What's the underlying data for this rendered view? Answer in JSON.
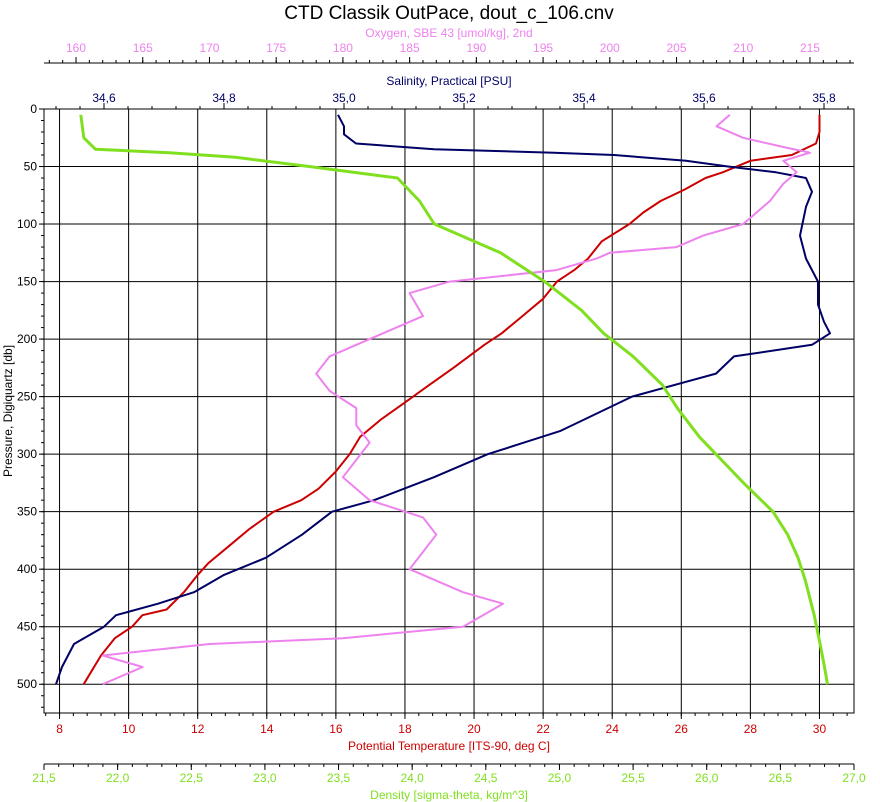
{
  "chart_data": {
    "type": "line",
    "title": "CTD Classik OutPace, dout_c_106.cnv",
    "y_axis": {
      "label": "Pressure, Digiquartz [db]",
      "range": [
        0,
        525
      ],
      "ticks": [
        0,
        50,
        100,
        150,
        200,
        250,
        300,
        350,
        400,
        450,
        500
      ],
      "tick_labels": [
        "0",
        "50",
        "100",
        "150",
        "200",
        "250",
        "300",
        "350",
        "400",
        "450",
        "500"
      ],
      "inverted": true
    },
    "x_axes": [
      {
        "id": "oxygen",
        "label": "Oxygen, SBE 43 [umol/kg], 2nd",
        "position": "top-outer",
        "color": "#ee82ee",
        "range": [
          157.6,
          218.3
        ],
        "ticks": [
          160,
          165,
          170,
          175,
          180,
          185,
          190,
          195,
          200,
          205,
          210,
          215
        ],
        "tick_labels": [
          "160",
          "165",
          "170",
          "175",
          "180",
          "185",
          "190",
          "195",
          "200",
          "205",
          "210",
          "215"
        ]
      },
      {
        "id": "salinity",
        "label": "Salinity, Practical [PSU]",
        "position": "top-inner",
        "color": "#000066",
        "range": [
          34.5,
          35.85
        ],
        "ticks": [
          34.6,
          34.8,
          35.0,
          35.2,
          35.4,
          35.6,
          35.8
        ],
        "tick_labels": [
          "34,6",
          "34,8",
          "35,0",
          "35,2",
          "35,4",
          "35,6",
          "35,8"
        ]
      },
      {
        "id": "temperature",
        "label": "Potential Temperature [ITS-90, deg C]",
        "position": "bottom-inner",
        "color": "#cc0000",
        "range": [
          7.55,
          31.0
        ],
        "ticks": [
          8,
          10,
          12,
          14,
          16,
          18,
          20,
          22,
          24,
          26,
          28,
          30
        ],
        "tick_labels": [
          "8",
          "10",
          "12",
          "14",
          "16",
          "18",
          "20",
          "22",
          "24",
          "26",
          "28",
          "30"
        ]
      },
      {
        "id": "density",
        "label": "Density [sigma-theta, kg/m^3]",
        "position": "bottom-outer",
        "color": "#80e020",
        "range": [
          21.5,
          27.0
        ],
        "ticks": [
          21.5,
          22.0,
          22.5,
          23.0,
          23.5,
          24.0,
          24.5,
          25.0,
          25.5,
          26.0,
          26.5,
          27.0
        ],
        "tick_labels": [
          "21,5",
          "22,0",
          "22,5",
          "23,0",
          "23,5",
          "24,0",
          "24,5",
          "25,0",
          "25,5",
          "26,0",
          "26,5",
          "27,0"
        ]
      }
    ],
    "grid": true,
    "series": [
      {
        "axis": "temperature",
        "color": "#cc0000",
        "points": [
          [
            30.0,
            5
          ],
          [
            30.0,
            20
          ],
          [
            29.9,
            30
          ],
          [
            29.2,
            40
          ],
          [
            28.0,
            45
          ],
          [
            27.2,
            55
          ],
          [
            26.7,
            60
          ],
          [
            26.1,
            70
          ],
          [
            25.4,
            80
          ],
          [
            24.9,
            90
          ],
          [
            24.5,
            100
          ],
          [
            23.7,
            115
          ],
          [
            23.3,
            130
          ],
          [
            22.9,
            140
          ],
          [
            22.4,
            150
          ],
          [
            22.0,
            165
          ],
          [
            21.4,
            180
          ],
          [
            20.8,
            195
          ],
          [
            20.3,
            205
          ],
          [
            19.4,
            225
          ],
          [
            18.7,
            240
          ],
          [
            18.0,
            255
          ],
          [
            17.3,
            270
          ],
          [
            16.7,
            285
          ],
          [
            16.4,
            300
          ],
          [
            16.0,
            315
          ],
          [
            15.5,
            330
          ],
          [
            15.0,
            340
          ],
          [
            14.2,
            350
          ],
          [
            13.5,
            365
          ],
          [
            12.9,
            380
          ],
          [
            12.3,
            395
          ],
          [
            12.0,
            405
          ],
          [
            11.6,
            420
          ],
          [
            11.1,
            435
          ],
          [
            10.4,
            440
          ],
          [
            10.1,
            450
          ],
          [
            9.6,
            460
          ],
          [
            9.2,
            475
          ],
          [
            8.9,
            490
          ],
          [
            8.7,
            500
          ]
        ]
      },
      {
        "axis": "salinity",
        "color": "#000066",
        "points": [
          [
            34.99,
            5
          ],
          [
            35.0,
            15
          ],
          [
            35.0,
            22
          ],
          [
            35.02,
            30
          ],
          [
            35.15,
            35
          ],
          [
            35.35,
            38
          ],
          [
            35.45,
            40
          ],
          [
            35.57,
            45
          ],
          [
            35.64,
            50
          ],
          [
            35.72,
            55
          ],
          [
            35.77,
            60
          ],
          [
            35.78,
            72
          ],
          [
            35.77,
            85
          ],
          [
            35.76,
            110
          ],
          [
            35.77,
            130
          ],
          [
            35.79,
            150
          ],
          [
            35.79,
            170
          ],
          [
            35.8,
            185
          ],
          [
            35.81,
            195
          ],
          [
            35.78,
            205
          ],
          [
            35.65,
            215
          ],
          [
            35.62,
            230
          ],
          [
            35.48,
            250
          ],
          [
            35.42,
            265
          ],
          [
            35.36,
            280
          ],
          [
            35.3,
            290
          ],
          [
            35.24,
            300
          ],
          [
            35.15,
            320
          ],
          [
            35.05,
            340
          ],
          [
            34.98,
            350
          ],
          [
            34.93,
            370
          ],
          [
            34.87,
            390
          ],
          [
            34.8,
            405
          ],
          [
            34.75,
            420
          ],
          [
            34.69,
            430
          ],
          [
            34.62,
            440
          ],
          [
            34.6,
            450
          ],
          [
            34.55,
            465
          ],
          [
            34.53,
            485
          ],
          [
            34.52,
            500
          ]
        ]
      },
      {
        "axis": "oxygen",
        "color": "#ee82ee",
        "points": [
          [
            209,
            5
          ],
          [
            208,
            15
          ],
          [
            210,
            25
          ],
          [
            213,
            33
          ],
          [
            215,
            38
          ],
          [
            213,
            45
          ],
          [
            214,
            55
          ],
          [
            213,
            65
          ],
          [
            212,
            80
          ],
          [
            211,
            90
          ],
          [
            210,
            100
          ],
          [
            207,
            110
          ],
          [
            205,
            120
          ],
          [
            200,
            125
          ],
          [
            199,
            130
          ],
          [
            196,
            140
          ],
          [
            188,
            150
          ],
          [
            185,
            160
          ],
          [
            186,
            180
          ],
          [
            184,
            190
          ],
          [
            182,
            200
          ],
          [
            179,
            215
          ],
          [
            178,
            230
          ],
          [
            179,
            245
          ],
          [
            181,
            260
          ],
          [
            181,
            275
          ],
          [
            182,
            290
          ],
          [
            181,
            305
          ],
          [
            180,
            320
          ],
          [
            182,
            340
          ],
          [
            186,
            355
          ],
          [
            187,
            370
          ],
          [
            186,
            385
          ],
          [
            185,
            400
          ],
          [
            189,
            420
          ],
          [
            192,
            430
          ],
          [
            189,
            450
          ],
          [
            180,
            460
          ],
          [
            170,
            465
          ],
          [
            162,
            475
          ],
          [
            165,
            485
          ],
          [
            162,
            500
          ]
        ]
      },
      {
        "axis": "density",
        "color": "#80e020",
        "points": [
          [
            21.75,
            5
          ],
          [
            21.77,
            25
          ],
          [
            21.85,
            35
          ],
          [
            22.35,
            38
          ],
          [
            22.8,
            42
          ],
          [
            23.3,
            50
          ],
          [
            23.9,
            60
          ],
          [
            24.05,
            80
          ],
          [
            24.15,
            100
          ],
          [
            24.6,
            125
          ],
          [
            24.9,
            150
          ],
          [
            25.15,
            175
          ],
          [
            25.3,
            195
          ],
          [
            25.5,
            215
          ],
          [
            25.7,
            240
          ],
          [
            25.8,
            260
          ],
          [
            25.95,
            285
          ],
          [
            26.1,
            305
          ],
          [
            26.25,
            325
          ],
          [
            26.45,
            350
          ],
          [
            26.55,
            370
          ],
          [
            26.62,
            390
          ],
          [
            26.67,
            410
          ],
          [
            26.73,
            440
          ],
          [
            26.77,
            465
          ],
          [
            26.8,
            485
          ],
          [
            26.82,
            500
          ]
        ]
      }
    ]
  }
}
